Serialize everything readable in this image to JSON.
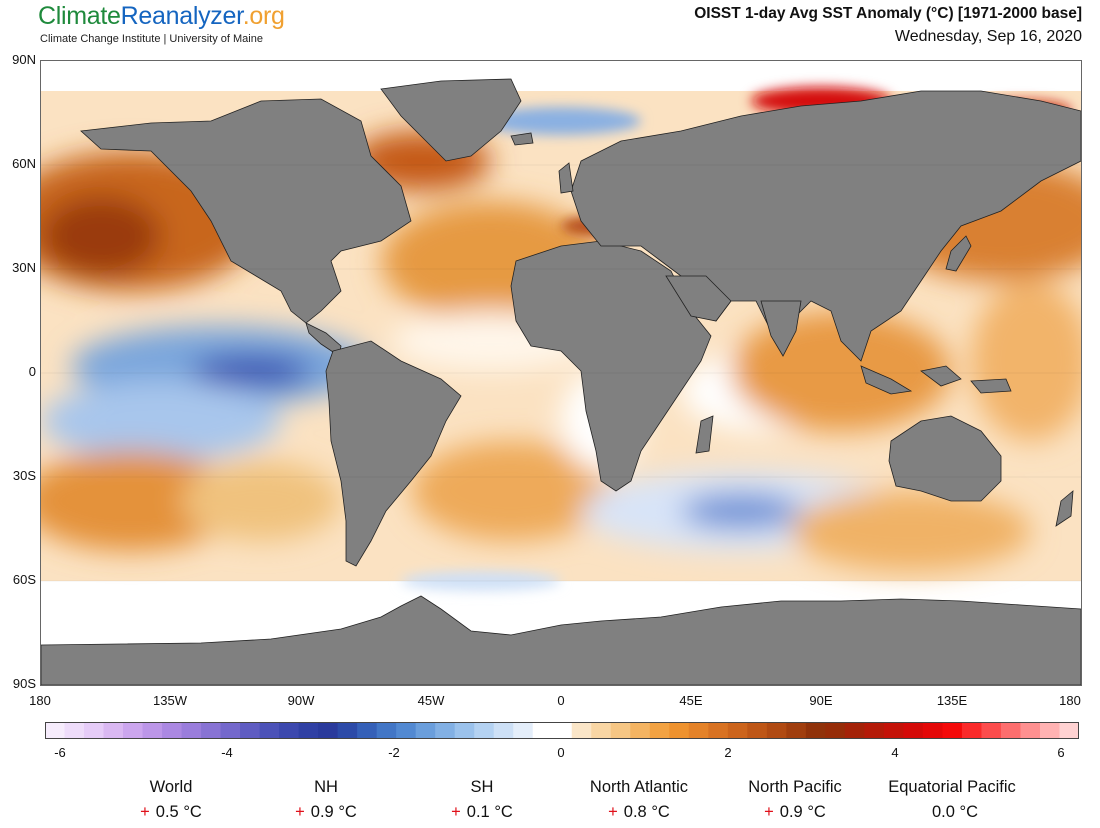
{
  "header": {
    "brand_part1": "Climate",
    "brand_part2": "Reanalyzer",
    "brand_part3": ".org",
    "subtitle": "Climate Change Institute | University of Maine",
    "title": "OISST 1-day Avg SST Anomaly (°C) [1971-2000 base]",
    "date": "Wednesday, Sep 16, 2020"
  },
  "map": {
    "y_ticks": [
      "90N",
      "60N",
      "30N",
      "0",
      "30S",
      "60S",
      "90S"
    ],
    "x_ticks": [
      "180",
      "135W",
      "90W",
      "45W",
      "0",
      "45E",
      "90E",
      "135E",
      "180"
    ],
    "land_color": "#808080",
    "ice_color": "#ffffff"
  },
  "colorbar": {
    "range": [
      -6,
      6
    ],
    "labels": [
      "-6",
      "-4",
      "-2",
      "0",
      "2",
      "4",
      "6"
    ],
    "colors": [
      "#f6ecfc",
      "#eedcfa",
      "#e6ccf8",
      "#dab8f2",
      "#cca6ee",
      "#bc96e8",
      "#ab88e2",
      "#9a7ddc",
      "#8873d4",
      "#7468cc",
      "#5f5cc2",
      "#4c52b8",
      "#3c48ae",
      "#3040a4",
      "#2a3a9c",
      "#2c4aa8",
      "#3560b8",
      "#4276c6",
      "#5289d2",
      "#6a9edc",
      "#82b0e4",
      "#9bc2ec",
      "#b4d2f2",
      "#cde0f6",
      "#e4eefa",
      "#ffffff",
      "#ffffff",
      "#fbe6c8",
      "#f9d6a4",
      "#f6c684",
      "#f4b462",
      "#f2a242",
      "#ee922e",
      "#e48228",
      "#d87222",
      "#cc641c",
      "#be5616",
      "#b04a12",
      "#a03e0e",
      "#90320a",
      "#962c08",
      "#a42208",
      "#b41a08",
      "#c41208",
      "#d40a08",
      "#e40808",
      "#f40a0a",
      "#fa2a2a",
      "#fc4c4c",
      "#fd6e6e",
      "#fe9090",
      "#ffb2b2",
      "#ffd2d2"
    ]
  },
  "stats": [
    {
      "name": "World",
      "sign": "+",
      "value": "0.5 °C"
    },
    {
      "name": "NH",
      "sign": "+",
      "value": "0.9 °C"
    },
    {
      "name": "SH",
      "sign": "+",
      "value": "0.1 °C"
    },
    {
      "name": "North Atlantic",
      "sign": "+",
      "value": "0.8 °C"
    },
    {
      "name": "North Pacific",
      "sign": "+",
      "value": "0.9 °C"
    },
    {
      "name": "Equatorial Pacific",
      "sign": "",
      "value": "0.0 °C"
    }
  ]
}
